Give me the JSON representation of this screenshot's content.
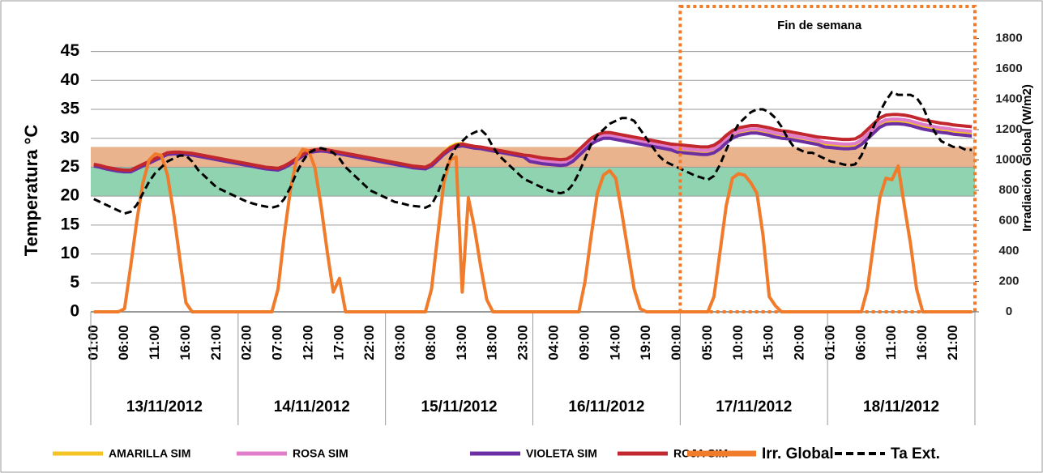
{
  "chart_data": {
    "type": "line",
    "y_label": "Temperatura °C",
    "y2_label": "Irradiación Global (W/m2)",
    "highlight_label": "Fin de semana",
    "ylim": [
      0,
      52.5
    ],
    "yticks": [
      0,
      5,
      10,
      15,
      20,
      25,
      30,
      35,
      40,
      45
    ],
    "y2lim": [
      0,
      2000
    ],
    "y2ticks": [
      0,
      200,
      400,
      600,
      800,
      1000,
      1200,
      1400,
      1600,
      1800
    ],
    "grid": true,
    "legend": "bottom",
    "bands": [
      {
        "from": 20,
        "to": 25,
        "color": "#8fd3b0"
      },
      {
        "from": 25,
        "to": 28.5,
        "color": "#e9b38e"
      }
    ],
    "groups": [
      {
        "label": "13/11/2012"
      },
      {
        "label": "14/11/2012"
      },
      {
        "label": "15/11/2012"
      },
      {
        "label": "16/11/2012"
      },
      {
        "label": "17/11/2012",
        "weekend": true
      },
      {
        "label": "18/11/2012",
        "weekend": true
      }
    ],
    "categories": [
      "01:00",
      null,
      null,
      null,
      null,
      "06:00",
      null,
      null,
      null,
      null,
      "11:00",
      null,
      null,
      null,
      null,
      "16:00",
      null,
      null,
      null,
      null,
      "21:00",
      null,
      null,
      null,
      null,
      "02:00",
      null,
      null,
      null,
      null,
      "07:00",
      null,
      null,
      null,
      null,
      "12:00",
      null,
      null,
      null,
      null,
      "17:00",
      null,
      null,
      null,
      null,
      "22:00",
      null,
      null,
      null,
      null,
      "03:00",
      null,
      null,
      null,
      null,
      "08:00",
      null,
      null,
      null,
      null,
      "13:00",
      null,
      null,
      null,
      null,
      "18:00",
      null,
      null,
      null,
      null,
      "23:00",
      null,
      null,
      null,
      null,
      "04:00",
      null,
      null,
      null,
      null,
      "09:00",
      null,
      null,
      null,
      null,
      "14:00",
      null,
      null,
      null,
      null,
      "19:00",
      null,
      null,
      null,
      null,
      "00:00",
      null,
      null,
      null,
      null,
      "05:00",
      null,
      null,
      null,
      null,
      "10:00",
      null,
      null,
      null,
      null,
      "15:00",
      null,
      null,
      null,
      null,
      "20:00",
      null,
      null,
      null,
      null,
      "01:00",
      null,
      null,
      null,
      null,
      "06:00",
      null,
      null,
      null,
      null,
      "11:00",
      null,
      null,
      null,
      null,
      "16:00",
      null,
      null,
      null,
      null,
      "21:00",
      null,
      null,
      null
    ],
    "series": [
      {
        "name": "AMARILLA SIM",
        "color": "#f6c324",
        "width": 4,
        "values": [
          25.3,
          25.1,
          24.8,
          24.6,
          24.4,
          24.3,
          24.3,
          24.8,
          25.3,
          25.8,
          26.3,
          26.8,
          27.3,
          27.4,
          27.4,
          27.3,
          27.2,
          27,
          26.8,
          26.6,
          26.4,
          26.2,
          26,
          25.8,
          25.6,
          25.4,
          25.2,
          25,
          24.8,
          24.7,
          24.6,
          25,
          25.6,
          26.3,
          27,
          27.6,
          27.8,
          27.9,
          27.8,
          27.6,
          27.4,
          27.2,
          27,
          26.8,
          26.6,
          26.4,
          26.2,
          26,
          25.8,
          25.6,
          25.4,
          25.2,
          25,
          24.9,
          24.8,
          25.4,
          26.5,
          27.6,
          28.5,
          29,
          29.1,
          28.8,
          28.5,
          28.3,
          28.1,
          27.9,
          27.7,
          27.5,
          27.3,
          27.1,
          26.9,
          26.2,
          26,
          25.8,
          25.7,
          25.6,
          25.5,
          25.6,
          26.2,
          27.2,
          28.2,
          29.2,
          29.8,
          30.2,
          30.2,
          30,
          29.8,
          29.6,
          29.4,
          29.2,
          29,
          28.8,
          28.6,
          28.4,
          28.2,
          27.9,
          27.8,
          27.7,
          27.6,
          27.5,
          27.5,
          27.8,
          28.5,
          29.5,
          30.3,
          30.8,
          31,
          31.2,
          31.2,
          31,
          30.8,
          30.5,
          30.3,
          30.2,
          30,
          29.8,
          29.6,
          29.4,
          29.2,
          28.8,
          28.7,
          28.6,
          28.5,
          28.5,
          28.6,
          29.2,
          30.2,
          31.2,
          32.2,
          32.7,
          32.8,
          32.8,
          32.7,
          32.5,
          32.2,
          31.9,
          31.7,
          31.5,
          31.3,
          31.2,
          31,
          30.9,
          30.8,
          30.7
        ]
      },
      {
        "name": "ROSA SIM",
        "color": "#e07ccb",
        "width": 4,
        "values": [
          25.4,
          25.2,
          24.9,
          24.7,
          24.5,
          24.4,
          24.4,
          24.9,
          25.4,
          25.9,
          26.4,
          26.9,
          27.4,
          27.5,
          27.5,
          27.4,
          27.3,
          27.1,
          26.9,
          26.7,
          26.5,
          26.3,
          26.1,
          25.9,
          25.7,
          25.5,
          25.3,
          25.1,
          24.9,
          24.8,
          24.7,
          25.1,
          25.7,
          26.4,
          27.1,
          27.7,
          27.9,
          28,
          27.9,
          27.7,
          27.5,
          27.3,
          27.1,
          26.9,
          26.7,
          26.5,
          26.3,
          26.1,
          25.9,
          25.7,
          25.5,
          25.3,
          25.1,
          25,
          24.9,
          25.4,
          26.4,
          27.4,
          28.2,
          28.7,
          28.9,
          28.7,
          28.5,
          28.4,
          28.2,
          28,
          27.8,
          27.6,
          27.4,
          27.2,
          27,
          26.5,
          26.3,
          26.1,
          26,
          25.9,
          25.8,
          25.9,
          26.5,
          27.5,
          28.5,
          29.5,
          30.1,
          30.5,
          30.5,
          30.3,
          30.1,
          29.9,
          29.7,
          29.5,
          29.3,
          29.1,
          28.9,
          28.7,
          28.5,
          28.3,
          28.2,
          28.1,
          28,
          27.9,
          27.9,
          28.2,
          28.9,
          29.9,
          30.7,
          31.2,
          31.4,
          31.6,
          31.6,
          31.4,
          31.2,
          30.9,
          30.7,
          30.6,
          30.4,
          30.2,
          30,
          29.8,
          29.6,
          29.3,
          29.2,
          29.1,
          29,
          29,
          29.1,
          29.7,
          30.7,
          31.7,
          32.7,
          33.2,
          33.3,
          33.3,
          33.2,
          33,
          32.7,
          32.4,
          32.2,
          32,
          31.8,
          31.7,
          31.5,
          31.4,
          31.3,
          31.2
        ]
      },
      {
        "name": "VIOLETA SIM",
        "color": "#6b2fa3",
        "width": 4,
        "values": [
          25.2,
          25,
          24.7,
          24.5,
          24.3,
          24.2,
          24.2,
          24.7,
          25.2,
          25.7,
          26.2,
          26.7,
          27.2,
          27.3,
          27.3,
          27.2,
          27.1,
          26.9,
          26.7,
          26.5,
          26.3,
          26.1,
          25.9,
          25.7,
          25.5,
          25.3,
          25.1,
          24.9,
          24.7,
          24.6,
          24.5,
          24.9,
          25.5,
          26.2,
          26.9,
          27.5,
          27.7,
          27.8,
          27.7,
          27.5,
          27.3,
          27.1,
          26.9,
          26.7,
          26.5,
          26.3,
          26.1,
          25.9,
          25.7,
          25.5,
          25.3,
          25.1,
          24.9,
          24.8,
          24.7,
          25.2,
          26.2,
          27.2,
          28,
          28.5,
          28.7,
          28.5,
          28.3,
          28.2,
          28,
          27.8,
          27.6,
          27.4,
          27.2,
          27,
          26.8,
          26,
          25.8,
          25.6,
          25.5,
          25.4,
          25.3,
          25.4,
          26,
          27,
          28,
          29,
          29.6,
          30,
          30,
          29.8,
          29.6,
          29.4,
          29.2,
          29,
          28.8,
          28.6,
          28.4,
          28.2,
          28,
          27.6,
          27.5,
          27.4,
          27.3,
          27.2,
          27.2,
          27.5,
          28.2,
          29.2,
          30,
          30.5,
          30.7,
          30.9,
          30.9,
          30.7,
          30.5,
          30.2,
          30,
          29.9,
          29.7,
          29.5,
          29.3,
          29.1,
          28.9,
          28.5,
          28.4,
          28.3,
          28.2,
          28.2,
          28.3,
          28.9,
          29.9,
          30.9,
          31.9,
          32.4,
          32.5,
          32.5,
          32.4,
          32.2,
          31.9,
          31.6,
          31.4,
          31.2,
          31,
          30.9,
          30.7,
          30.6,
          30.5,
          30.4
        ]
      },
      {
        "name": "ROJA SIM",
        "color": "#c1272d",
        "width": 4,
        "values": [
          25.5,
          25.3,
          25,
          24.8,
          24.6,
          24.5,
          24.5,
          25,
          25.5,
          26,
          26.5,
          27,
          27.5,
          27.6,
          27.6,
          27.5,
          27.4,
          27.2,
          27,
          26.8,
          26.6,
          26.4,
          26.2,
          26,
          25.8,
          25.6,
          25.4,
          25.2,
          25,
          24.9,
          24.8,
          25.2,
          25.8,
          26.5,
          27.2,
          27.8,
          28,
          28.1,
          28,
          27.8,
          27.6,
          27.4,
          27.2,
          27,
          26.8,
          26.6,
          26.4,
          26.2,
          26,
          25.8,
          25.6,
          25.4,
          25.2,
          25.1,
          25,
          25.5,
          26.5,
          27.5,
          28.3,
          28.8,
          29,
          28.8,
          28.6,
          28.5,
          28.3,
          28.1,
          27.9,
          27.7,
          27.5,
          27.3,
          27.1,
          27,
          26.8,
          26.6,
          26.5,
          26.4,
          26.3,
          26.4,
          27,
          28,
          29,
          30,
          30.6,
          31,
          31,
          30.8,
          30.6,
          30.4,
          30.2,
          30,
          29.8,
          29.6,
          29.4,
          29.2,
          29,
          28.9,
          28.8,
          28.7,
          28.6,
          28.5,
          28.5,
          28.8,
          29.5,
          30.5,
          31.3,
          31.8,
          32,
          32.2,
          32.2,
          32,
          31.8,
          31.5,
          31.3,
          31.2,
          31,
          30.8,
          30.6,
          30.4,
          30.2,
          30.1,
          30,
          29.9,
          29.8,
          29.8,
          29.9,
          30.5,
          31.5,
          32.5,
          33.5,
          34,
          34.1,
          34.1,
          34,
          33.8,
          33.5,
          33.2,
          33,
          32.8,
          32.6,
          32.5,
          32.3,
          32.2,
          32.1,
          32
        ]
      },
      {
        "name": "Irr. Global",
        "color": "#f07b2b",
        "width": 4,
        "axis": "y2",
        "values": [
          0,
          0,
          0,
          0,
          0,
          20,
          300,
          600,
          850,
          1000,
          1040,
          1030,
          900,
          650,
          350,
          60,
          0,
          0,
          0,
          0,
          0,
          0,
          0,
          0,
          0,
          0,
          0,
          0,
          0,
          0,
          150,
          500,
          800,
          1000,
          1070,
          1060,
          950,
          700,
          400,
          130,
          220,
          0,
          0,
          0,
          0,
          0,
          0,
          0,
          0,
          0,
          0,
          0,
          0,
          0,
          0,
          150,
          500,
          850,
          1000,
          1020,
          130,
          750,
          550,
          300,
          80,
          0,
          0,
          0,
          0,
          0,
          0,
          0,
          0,
          0,
          0,
          0,
          0,
          0,
          0,
          0,
          200,
          500,
          780,
          900,
          930,
          880,
          650,
          400,
          150,
          20,
          0,
          0,
          0,
          0,
          0,
          0,
          0,
          0,
          0,
          0,
          0,
          100,
          400,
          700,
          880,
          910,
          900,
          850,
          780,
          500,
          100,
          40,
          0,
          0,
          0,
          0,
          0,
          0,
          0,
          0,
          0,
          0,
          0,
          0,
          0,
          0,
          150,
          450,
          750,
          880,
          870,
          960,
          700,
          450,
          150,
          0,
          0,
          0,
          0,
          0,
          0,
          0,
          0,
          0
        ]
      },
      {
        "name": "Ta Ext.",
        "color": "#000000",
        "width": 3,
        "dash": true,
        "values": [
          19.5,
          19,
          18.5,
          18,
          17.5,
          17,
          17.3,
          18.5,
          20.5,
          22.5,
          24,
          25,
          26,
          26.5,
          27,
          27,
          26,
          24.5,
          23.5,
          22.5,
          21.5,
          21,
          20.5,
          20,
          19.5,
          19,
          18.7,
          18.4,
          18.2,
          18,
          18.3,
          19.5,
          21.5,
          24,
          26,
          27.5,
          28,
          28.3,
          28,
          27.5,
          26.5,
          25,
          24,
          23,
          22,
          21,
          20.5,
          20,
          19.5,
          19,
          18.8,
          18.5,
          18.3,
          18.2,
          18,
          18.5,
          20.5,
          23.5,
          26.5,
          28.5,
          29.5,
          30.5,
          31,
          31.5,
          30.5,
          28.5,
          27,
          26,
          25,
          24,
          23,
          22.5,
          22,
          21.5,
          21,
          20.7,
          20.5,
          20.8,
          22,
          24,
          26.5,
          29,
          30.5,
          31.5,
          32.5,
          33,
          33.5,
          33.5,
          33,
          31.5,
          30,
          28.5,
          27,
          26,
          25.5,
          25,
          24.5,
          24,
          23.5,
          23.2,
          22.8,
          23.5,
          25.5,
          28,
          30.5,
          32.5,
          33.5,
          34.5,
          35,
          35,
          34.5,
          33.5,
          32,
          30,
          28.5,
          28,
          27.5,
          27.5,
          27,
          26.5,
          26,
          25.8,
          25.5,
          25.3,
          25.5,
          27,
          29.5,
          32,
          34.5,
          36.5,
          38,
          37.5,
          37.5,
          37.5,
          37,
          35.5,
          33,
          31,
          29.5,
          29,
          28.5,
          28.5,
          28,
          28
        ]
      }
    ]
  }
}
